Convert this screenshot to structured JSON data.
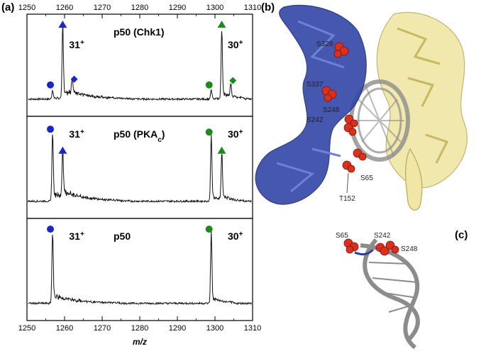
{
  "panel_letters": [
    "(a)",
    "(b)",
    "(c)"
  ],
  "colors": {
    "blue": "#1a26c8",
    "green": "#1e8a1e",
    "trace": "#111111",
    "protein_blue": "#2a3d9e",
    "protein_yellow": "#e8dc8c",
    "dna": "#8a8a8a",
    "residue": "#d8321e"
  },
  "chart_data": [
    {
      "type": "line",
      "title": "p50 (Chk1)",
      "xlabel": "m/z",
      "xlim": [
        1250,
        1310
      ],
      "x_ticks": [
        "1250",
        "1260",
        "1270",
        "1280",
        "1290",
        "1300",
        "1310"
      ],
      "y_visible": false,
      "peaks": [
        {
          "x": 1256.8,
          "rel_height": 0.12,
          "marker": "circle",
          "color": "blue"
        },
        {
          "x": 1259.5,
          "rel_height": 0.95,
          "marker": "triangle",
          "color": "blue"
        },
        {
          "x": 1262.0,
          "rel_height": 0.2,
          "marker": "diamond",
          "color": "blue"
        },
        {
          "x": 1299.0,
          "rel_height": 0.12,
          "marker": "circle",
          "color": "green"
        },
        {
          "x": 1301.8,
          "rel_height": 0.95,
          "marker": "triangle",
          "color": "green"
        },
        {
          "x": 1304.2,
          "rel_height": 0.18,
          "marker": "diamond",
          "color": "green"
        }
      ],
      "annotations": [
        {
          "text": "31",
          "sup": "+",
          "x": 1261.2
        },
        {
          "text": "30",
          "sup": "+",
          "x": 1303.4
        }
      ]
    },
    {
      "type": "line",
      "title": "p50 (PKA",
      "title_sub": "c",
      "title_end": ")",
      "xlim": [
        1250,
        1310
      ],
      "y_visible": false,
      "peaks": [
        {
          "x": 1256.8,
          "rel_height": 0.92,
          "marker": "circle",
          "color": "blue"
        },
        {
          "x": 1259.5,
          "rel_height": 0.62,
          "marker": "triangle",
          "color": "blue"
        },
        {
          "x": 1299.0,
          "rel_height": 0.88,
          "marker": "circle",
          "color": "green"
        },
        {
          "x": 1301.8,
          "rel_height": 0.62,
          "marker": "triangle",
          "color": "green"
        }
      ],
      "annotations": [
        {
          "text": "31",
          "sup": "+",
          "x": 1261.2
        },
        {
          "text": "30",
          "sup": "+",
          "x": 1303.4
        }
      ]
    },
    {
      "type": "line",
      "title": "p50",
      "xlim": [
        1250,
        1310
      ],
      "y_visible": false,
      "peaks": [
        {
          "x": 1256.8,
          "rel_height": 0.95,
          "marker": "circle",
          "color": "blue"
        },
        {
          "x": 1299.0,
          "rel_height": 0.95,
          "marker": "circle",
          "color": "green"
        }
      ],
      "annotations": [
        {
          "text": "31",
          "sup": "+",
          "x": 1261.2
        },
        {
          "text": "30",
          "sup": "+",
          "x": 1303.4
        }
      ]
    }
  ],
  "structure_b": {
    "residue_labels": [
      "S328",
      "S337",
      "S248",
      "S242",
      "S65",
      "T152"
    ]
  },
  "structure_c": {
    "residue_labels": [
      "S65",
      "S242",
      "S248"
    ]
  }
}
